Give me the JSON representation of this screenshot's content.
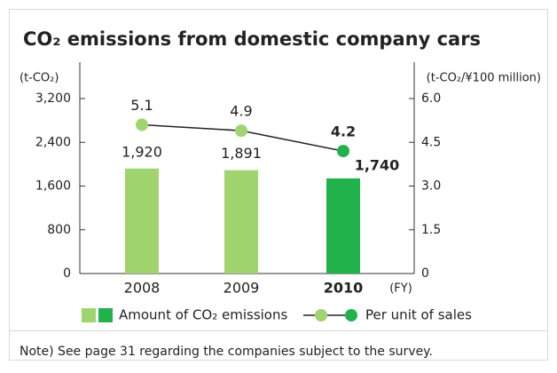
{
  "chart_data": {
    "type": "bar",
    "title": "CO₂ emissions from domestic company cars",
    "y_label": "(t-CO₂)",
    "y2_label": "(t-CO₂/¥100 million)",
    "x_label": "(FY)",
    "note": "Note) See page 31 regarding the companies subject to the survey.",
    "categories": [
      "2008",
      "2009",
      "2010"
    ],
    "ylim": [
      0,
      3200
    ],
    "yticks": [
      0,
      800,
      {
        "value": 1600,
        "label": "1,600"
      },
      {
        "value": 2400,
        "label": "2,400"
      },
      {
        "value": 3200,
        "label": "3,200"
      }
    ],
    "y2lim": [
      0,
      6
    ],
    "y2ticks": [
      0,
      1.5,
      {
        "value": 3,
        "label": "3.0"
      },
      4.5,
      {
        "value": 6,
        "label": "6.0"
      }
    ],
    "series": [
      {
        "name": "Amount of CO₂ emissions",
        "type": "bar",
        "colors": [
          "#9fd46e",
          "#9fd46e",
          "#22b24c"
        ],
        "values": [
          1920,
          1891,
          1740
        ],
        "value_labels": [
          "1,920",
          "1,891",
          "1,740"
        ]
      },
      {
        "name": "Per unit of sales",
        "type": "line",
        "axis": "y2",
        "color": "#222",
        "colors": [
          "#9fd46e",
          "#9fd46e",
          "#22b24c"
        ],
        "values": [
          5.1,
          4.9,
          4.2
        ]
      }
    ]
  }
}
